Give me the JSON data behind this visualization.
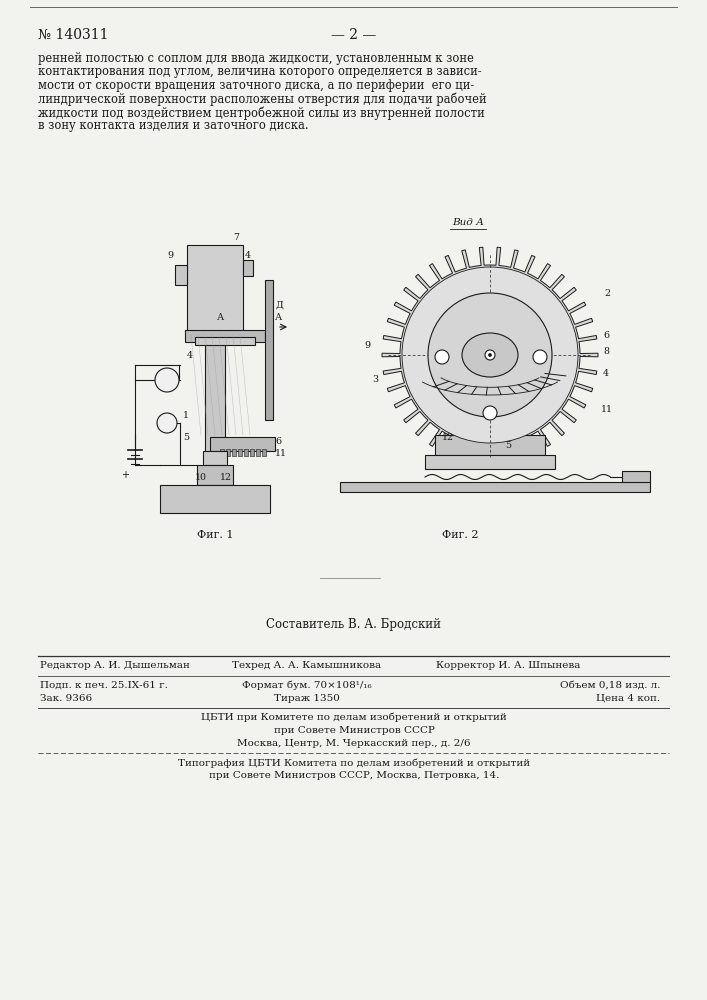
{
  "bg_color": "#f2f2ee",
  "page_number_text": "№ 140311",
  "page_dash_text": "— 2 —",
  "body_text": "ренней полостью с соплом для ввода жидкости, установленным к зоне\nконтактирования под углом, величина которого определяется в зависи-\nмости от скорости вращения заточного диска, а по периферии  его ци-\nлиндрической поверхности расположены отверстия для подачи рабочей\nжидкости под воздействием центробежной силы из внутренней полости\nв зону контакта изделия и заточного диска.",
  "fig1_caption": "Фиг. 1",
  "fig2_caption": "Фиг. 2",
  "vid_a_label": "Вид А",
  "sestavitel_text": "Составитель В. А. Бродский",
  "cbti_line1": "ЦБТИ при Комитете по делам изобретений и открытий",
  "cbti_line2": "при Совете Министров СССР",
  "cbti_line3": "Москва, Центр, М. Черкасский пер., д. 2/6",
  "tip_line1": "Типография ЦБТИ Комитета по делам изобретений и открытий",
  "tip_line2": "при Совете Министров СССР, Москва, Петровка, 14."
}
